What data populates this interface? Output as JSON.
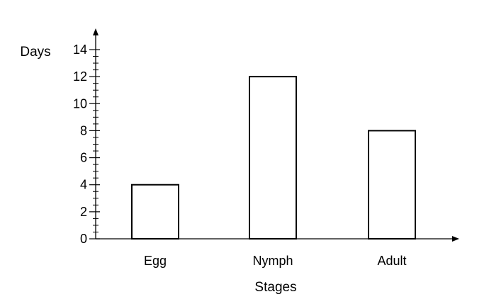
{
  "chart_data": {
    "type": "bar",
    "categories": [
      "Egg",
      "Nymph",
      "Adult"
    ],
    "values": [
      4,
      12,
      8
    ],
    "title": "",
    "xlabel": "Stages",
    "ylabel": "Days",
    "ylim": [
      0,
      14
    ],
    "yticks": [
      0,
      2,
      4,
      6,
      8,
      10,
      12,
      14
    ],
    "minor_tick_step": 0.5,
    "grid": false,
    "bar_fill": "#ffffff",
    "bar_stroke": "#000000"
  }
}
